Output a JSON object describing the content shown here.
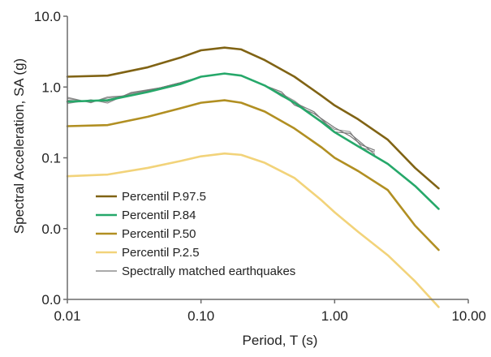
{
  "chart_data": {
    "type": "line",
    "title": "",
    "xlabel": "Period, T (s)",
    "ylabel": "Spectral Acceleration, SA (g)",
    "x_scale": "log",
    "y_scale": "log",
    "xlim": [
      0.01,
      10
    ],
    "ylim": [
      0.001,
      10
    ],
    "x_ticks": [
      {
        "value": 0.01,
        "label": "0.01"
      },
      {
        "value": 0.1,
        "label": "0.10"
      },
      {
        "value": 1,
        "label": "1.00"
      },
      {
        "value": 10,
        "label": "10.00"
      }
    ],
    "y_ticks": [
      {
        "value": 0.001,
        "label": "0.0"
      },
      {
        "value": 0.01,
        "label": "0.0"
      },
      {
        "value": 0.1,
        "label": "0.1"
      },
      {
        "value": 1,
        "label": "1.0"
      },
      {
        "value": 10,
        "label": "10.0"
      }
    ],
    "grid": false,
    "legend_position": "bottom-left",
    "series": [
      {
        "name": "Percentil P.97.5",
        "color": "#806314",
        "x": [
          0.01,
          0.02,
          0.04,
          0.07,
          0.1,
          0.15,
          0.2,
          0.3,
          0.5,
          0.8,
          1.0,
          1.5,
          2.5,
          4.0,
          6.0
        ],
        "y": [
          1.4,
          1.45,
          1.9,
          2.6,
          3.3,
          3.6,
          3.4,
          2.4,
          1.4,
          0.75,
          0.55,
          0.35,
          0.18,
          0.072,
          0.037
        ]
      },
      {
        "name": "Percentil P.84",
        "color": "#26a86a",
        "x": [
          0.01,
          0.02,
          0.04,
          0.07,
          0.1,
          0.15,
          0.2,
          0.3,
          0.5,
          0.8,
          1.0,
          1.5,
          2.5,
          4.0,
          6.0
        ],
        "y": [
          0.62,
          0.65,
          0.85,
          1.1,
          1.4,
          1.55,
          1.45,
          1.05,
          0.6,
          0.32,
          0.23,
          0.145,
          0.082,
          0.04,
          0.019
        ]
      },
      {
        "name": "Percentil P.50",
        "color": "#b18f22",
        "x": [
          0.01,
          0.02,
          0.04,
          0.07,
          0.1,
          0.15,
          0.2,
          0.3,
          0.5,
          0.8,
          1.0,
          1.5,
          2.5,
          4.0,
          6.0
        ],
        "y": [
          0.28,
          0.29,
          0.38,
          0.5,
          0.6,
          0.65,
          0.6,
          0.45,
          0.26,
          0.14,
          0.1,
          0.065,
          0.035,
          0.011,
          0.005
        ]
      },
      {
        "name": "Percentil P.2.5",
        "color": "#f2d37a",
        "x": [
          0.01,
          0.02,
          0.04,
          0.07,
          0.1,
          0.15,
          0.2,
          0.3,
          0.5,
          0.8,
          1.0,
          1.5,
          2.5,
          4.0,
          6.0
        ],
        "y": [
          0.055,
          0.058,
          0.072,
          0.09,
          0.105,
          0.115,
          0.11,
          0.085,
          0.052,
          0.025,
          0.017,
          0.009,
          0.0042,
          0.0018,
          0.00078
        ]
      },
      {
        "name": "Spectrally matched earthquakes",
        "color": "#777777",
        "x": [
          0.01,
          0.015,
          0.02,
          0.03,
          0.05,
          0.07,
          0.1,
          0.15,
          0.2,
          0.3,
          0.4,
          0.5,
          0.7,
          1.0,
          1.3,
          1.6,
          2.0
        ],
        "y": [
          0.65,
          0.63,
          0.66,
          0.8,
          0.98,
          1.15,
          1.4,
          1.55,
          1.45,
          1.05,
          0.8,
          0.6,
          0.42,
          0.25,
          0.22,
          0.15,
          0.12
        ]
      }
    ]
  }
}
